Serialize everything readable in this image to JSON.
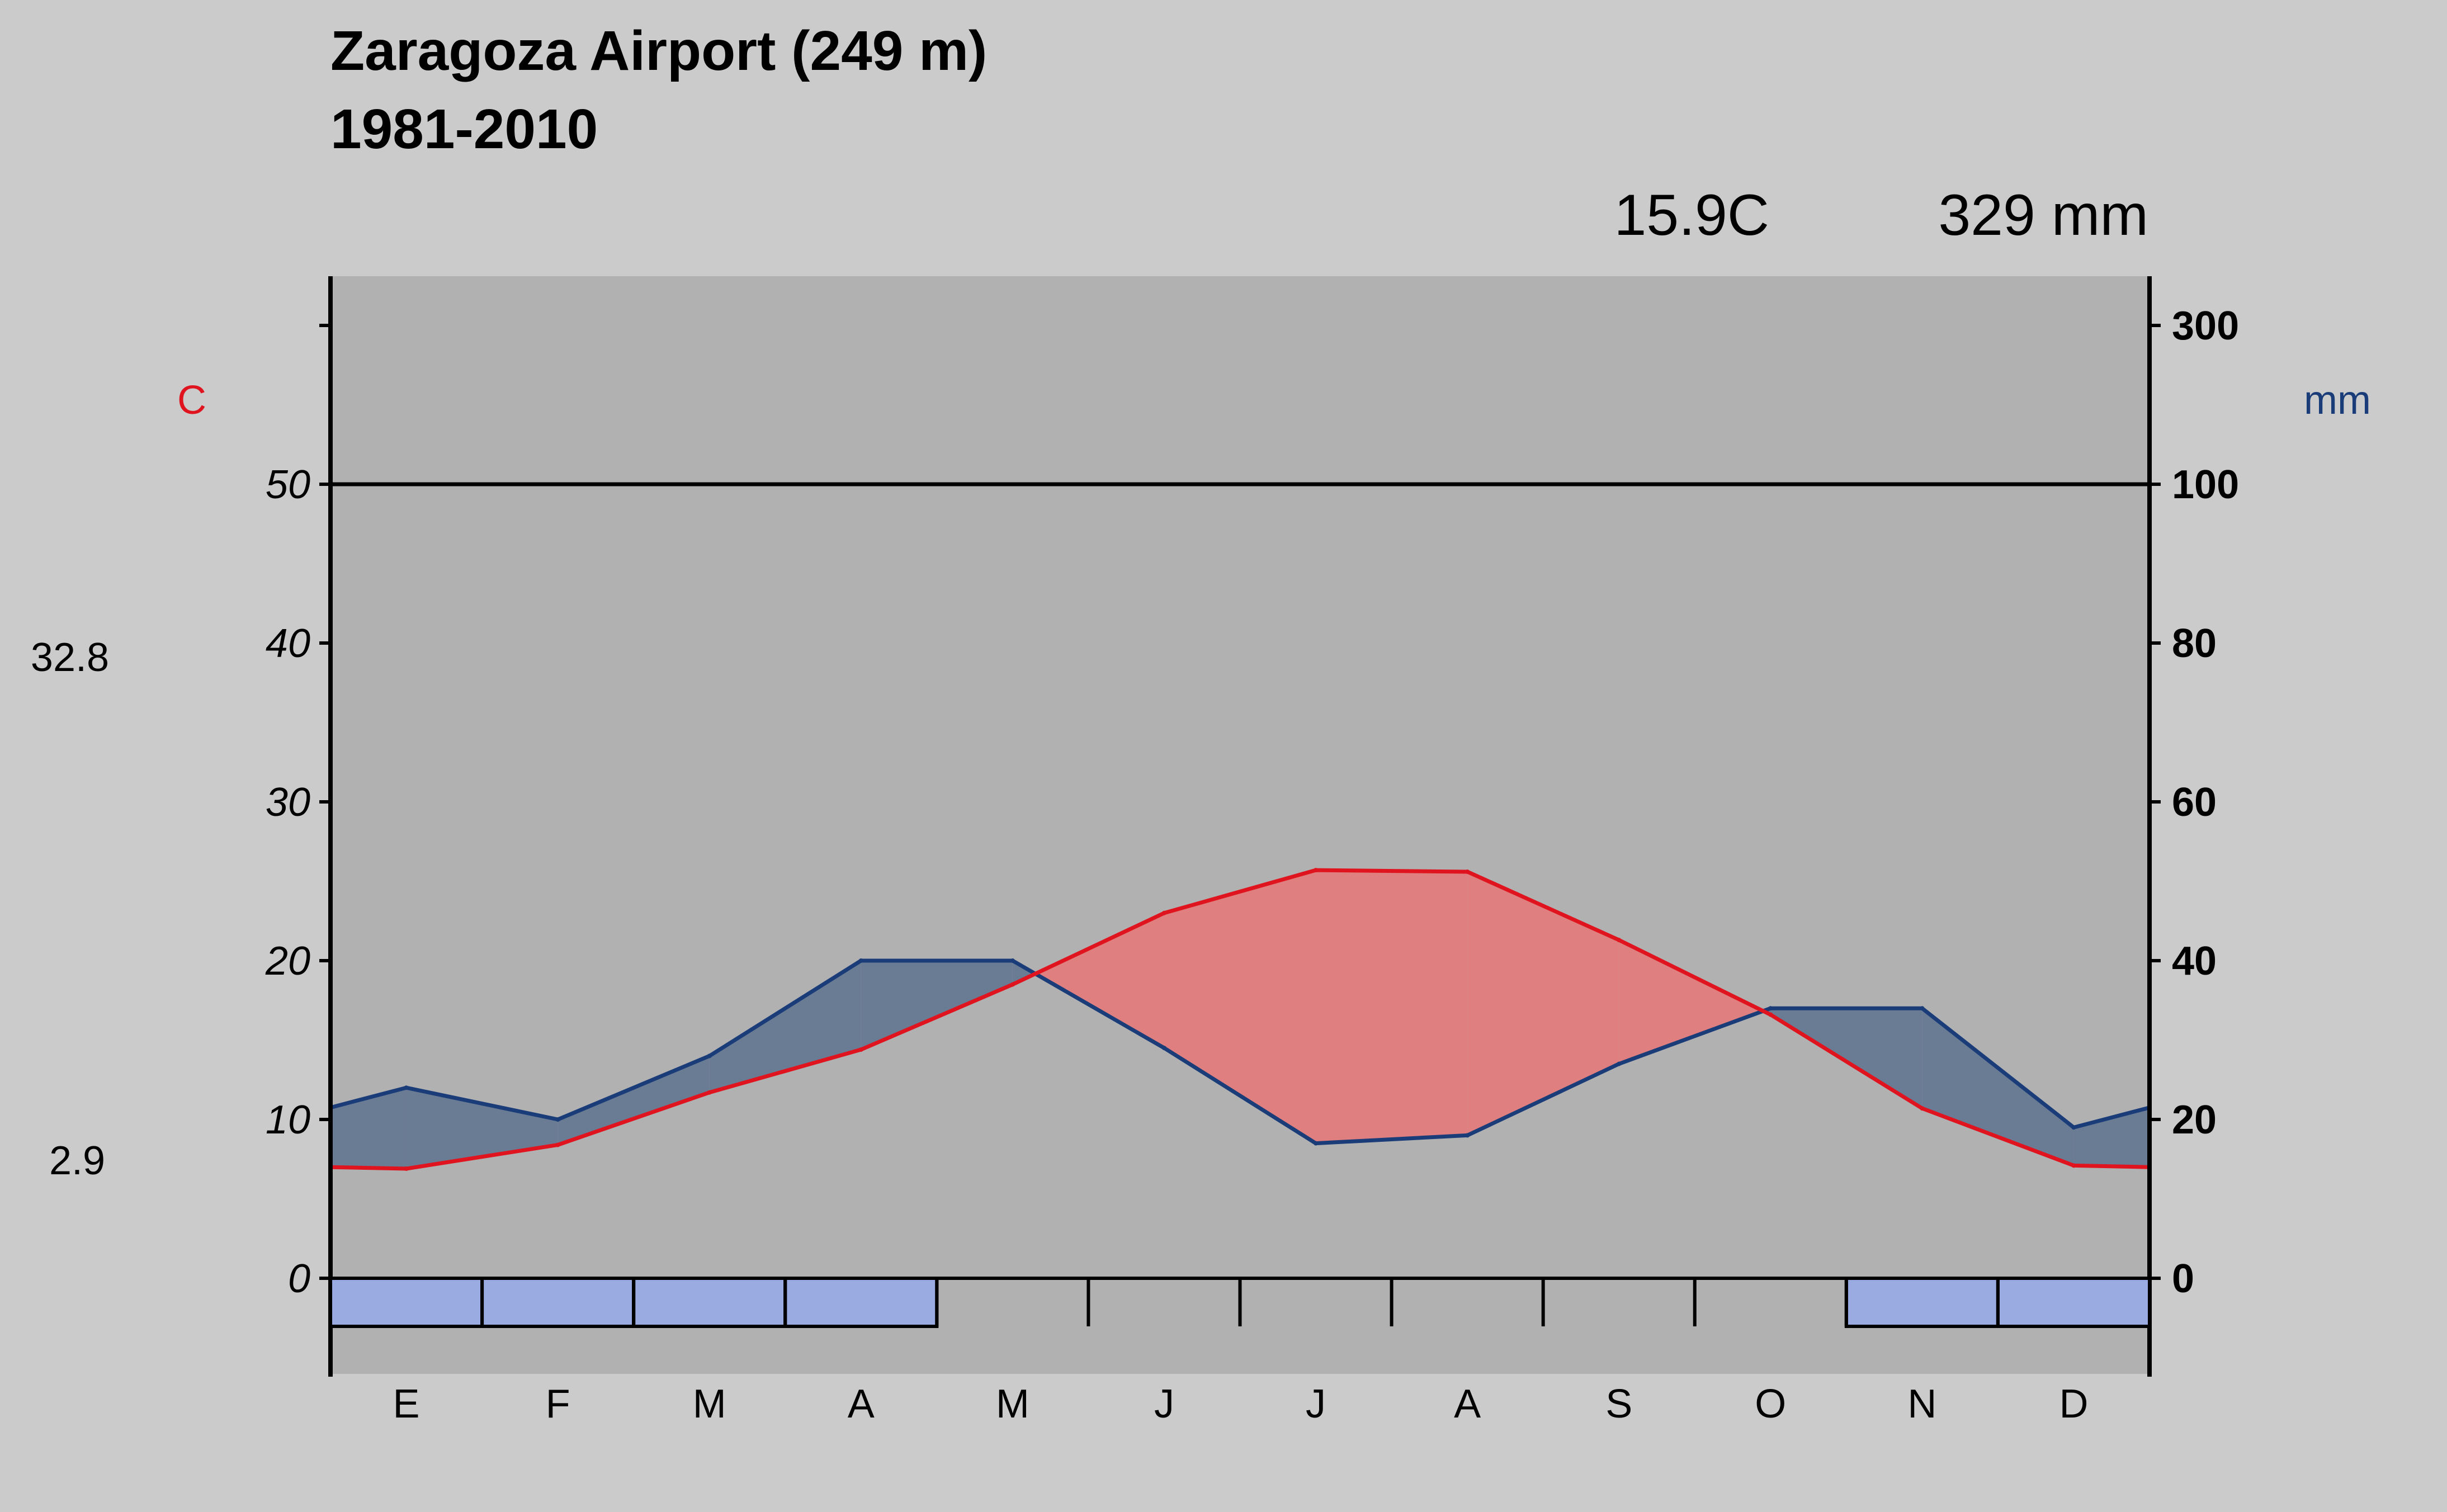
{
  "title": "Zaragoza Airport (249 m)",
  "period": "1981-2010",
  "summary": {
    "mean_temp": "15.9C",
    "annual_precip": "329 mm"
  },
  "side_labels": {
    "max_temp": "32.8",
    "min_temp": "2.9"
  },
  "colors": {
    "temperature": "#e0141e",
    "precipitation": "#1a3c78",
    "humid_fill": "#6a7b94",
    "arid_fill": "#e07f7f",
    "frost_box": "#9aabe1",
    "plot_bg": "#b1b1b1",
    "page_bg": "#cbcbcb"
  },
  "chart_data": {
    "type": "line",
    "subtype": "walter-lieth-climate-diagram",
    "categories": [
      "E",
      "F",
      "M",
      "A",
      "M",
      "J",
      "J",
      "A",
      "S",
      "O",
      "N",
      "D"
    ],
    "series": [
      {
        "name": "Temperature",
        "axis": "left",
        "unit": "C",
        "values": [
          6.9,
          8.4,
          11.7,
          14.4,
          18.5,
          23.0,
          25.7,
          25.6,
          21.3,
          16.6,
          10.7,
          7.1
        ]
      },
      {
        "name": "Precipitation",
        "axis": "right",
        "unit": "mm",
        "values": [
          24,
          20,
          28,
          40,
          40,
          29,
          17,
          18,
          27,
          34,
          34,
          19
        ]
      }
    ],
    "y_left": {
      "label": "C",
      "ticks": [
        0,
        10,
        20,
        30,
        40,
        50
      ],
      "range": [
        0,
        60
      ]
    },
    "y_right": {
      "label": "mm",
      "ticks": [
        0,
        20,
        40,
        60,
        80,
        100,
        300
      ],
      "scale": "20 mm per 10 C up to 100 mm, compressed above"
    },
    "frost_months": [
      true,
      true,
      true,
      true,
      false,
      false,
      false,
      false,
      false,
      false,
      true,
      true
    ]
  }
}
